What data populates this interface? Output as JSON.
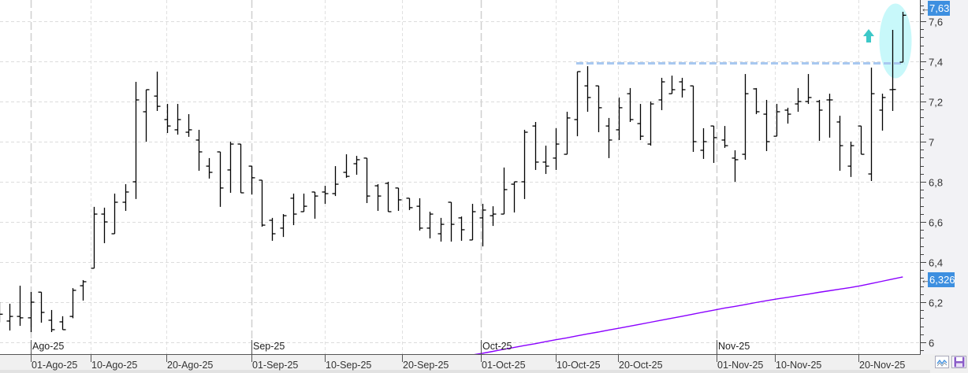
{
  "chart_data": {
    "type": "ohlc",
    "title": "",
    "xlabel": "",
    "ylabel": "",
    "ylim": [
      5.94,
      7.7
    ],
    "grid": true,
    "y_ticks": [
      "6",
      "6,2",
      "6,4",
      "6,6",
      "6,8",
      "7",
      "7,2",
      "7,4",
      "7,6"
    ],
    "y_tick_values": [
      6.0,
      6.2,
      6.4,
      6.6,
      6.8,
      7.0,
      7.2,
      7.4,
      7.6
    ],
    "x_ticks": [
      "01-Ago-25",
      "10-Ago-25",
      "20-Ago-25",
      "01-Sep-25",
      "10-Sep-25",
      "20-Sep-25",
      "01-Oct-25",
      "10-Oct-25",
      "20-Oct-25",
      "01-Nov-25",
      "10-Nov-25",
      "20-Nov-25"
    ],
    "month_labels": [
      "Ago-25",
      "Sep-25",
      "Oct-25",
      "Nov-25"
    ],
    "bars_columns": [
      "date",
      "open",
      "high",
      "low",
      "close"
    ],
    "bars": [
      [
        "2025-07-29",
        6.13,
        6.2,
        6.1,
        6.14
      ],
      [
        "2025-07-30",
        6.106,
        6.192,
        6.059,
        6.129
      ],
      [
        "2025-07-31",
        6.129,
        6.282,
        6.082,
        6.122
      ],
      [
        "2025-08-01",
        6.122,
        6.251,
        6.051,
        6.2
      ],
      [
        "2025-08-04",
        6.25,
        6.25,
        6.098,
        6.149
      ],
      [
        "2025-08-05",
        6.11,
        6.161,
        6.051,
        6.063
      ],
      [
        "2025-08-06",
        6.102,
        6.13,
        6.063,
        6.063
      ],
      [
        "2025-08-07",
        6.129,
        6.27,
        6.12,
        6.259
      ],
      [
        "2025-08-08",
        6.282,
        6.31,
        6.208,
        6.302
      ],
      [
        "2025-08-11",
        6.369,
        6.675,
        6.369,
        6.639
      ],
      [
        "2025-08-12",
        6.639,
        6.671,
        6.494,
        6.6
      ],
      [
        "2025-08-13",
        6.541,
        6.741,
        6.541,
        6.698
      ],
      [
        "2025-08-14",
        6.698,
        6.788,
        6.655,
        6.749
      ],
      [
        "2025-08-15",
        6.8,
        7.298,
        6.714,
        7.208
      ],
      [
        "2025-08-18",
        7.149,
        7.259,
        7.0,
        7.259
      ],
      [
        "2025-08-19",
        7.227,
        7.349,
        7.153,
        7.176
      ],
      [
        "2025-08-20",
        7.11,
        7.188,
        7.043,
        7.078
      ],
      [
        "2025-08-21",
        7.059,
        7.188,
        7.035,
        7.11
      ],
      [
        "2025-08-22",
        7.047,
        7.137,
        7.024,
        7.059
      ],
      [
        "2025-08-25",
        7.008,
        7.059,
        6.855,
        6.949
      ],
      [
        "2025-08-26",
        6.878,
        6.918,
        6.816,
        6.847
      ],
      [
        "2025-08-27",
        6.949,
        6.949,
        6.675,
        6.769
      ],
      [
        "2025-08-28",
        6.859,
        7.0,
        6.745,
        6.988
      ],
      [
        "2025-08-29",
        6.988,
        6.988,
        6.745,
        6.745
      ],
      [
        "2025-09-01",
        6.878,
        6.878,
        6.737,
        6.82
      ],
      [
        "2025-09-02",
        6.808,
        6.808,
        6.576,
        6.584
      ],
      [
        "2025-09-03",
        6.608,
        6.62,
        6.506,
        6.541
      ],
      [
        "2025-09-04",
        6.569,
        6.639,
        6.525,
        6.631
      ],
      [
        "2025-09-05",
        6.718,
        6.741,
        6.584,
        6.639
      ],
      [
        "2025-09-08",
        6.651,
        6.741,
        6.651,
        6.678
      ],
      [
        "2025-09-09",
        6.749,
        6.749,
        6.616,
        6.729
      ],
      [
        "2025-09-10",
        6.749,
        6.78,
        6.69,
        6.741
      ],
      [
        "2025-09-11",
        6.741,
        6.878,
        6.729,
        6.788
      ],
      [
        "2025-09-12",
        6.847,
        6.937,
        6.82,
        6.827
      ],
      [
        "2025-09-15",
        6.89,
        6.929,
        6.835,
        6.91
      ],
      [
        "2025-09-16",
        6.918,
        6.918,
        6.694,
        6.729
      ],
      [
        "2025-09-17",
        6.78,
        6.788,
        6.655,
        6.729
      ],
      [
        "2025-09-18",
        6.792,
        6.8,
        6.651,
        6.651
      ],
      [
        "2025-09-19",
        6.769,
        6.769,
        6.655,
        6.71
      ],
      [
        "2025-09-22",
        6.718,
        6.718,
        6.659,
        6.671
      ],
      [
        "2025-09-23",
        6.678,
        6.718,
        6.557,
        6.569
      ],
      [
        "2025-09-24",
        6.569,
        6.651,
        6.518,
        6.639
      ],
      [
        "2025-09-25",
        6.541,
        6.62,
        6.502,
        6.588
      ],
      [
        "2025-09-26",
        6.698,
        6.698,
        6.502,
        6.588
      ],
      [
        "2025-09-29",
        6.62,
        6.627,
        6.506,
        6.561
      ],
      [
        "2025-09-30",
        6.51,
        6.69,
        6.51,
        6.651
      ],
      [
        "2025-10-01",
        6.62,
        6.69,
        6.478,
        6.659
      ],
      [
        "2025-10-02",
        6.631,
        6.678,
        6.58,
        6.639
      ],
      [
        "2025-10-03",
        6.639,
        6.871,
        6.639,
        6.761
      ],
      [
        "2025-10-06",
        6.788,
        6.8,
        6.647,
        6.8
      ],
      [
        "2025-10-07",
        6.8,
        7.059,
        6.714,
        7.047
      ],
      [
        "2025-10-08",
        7.078,
        7.098,
        6.859,
        6.898
      ],
      [
        "2025-10-09",
        6.898,
        6.98,
        6.839,
        6.878
      ],
      [
        "2025-10-10",
        6.918,
        7.067,
        6.859,
        6.988
      ],
      [
        "2025-10-13",
        6.937,
        7.149,
        6.937,
        7.118
      ],
      [
        "2025-10-14",
        7.11,
        7.349,
        7.027,
        7.349
      ],
      [
        "2025-10-15",
        7.278,
        7.376,
        7.149,
        7.22
      ],
      [
        "2025-10-16",
        7.278,
        7.278,
        7.047,
        7.169
      ],
      [
        "2025-10-17",
        7.078,
        7.118,
        6.918,
        7.008
      ],
      [
        "2025-10-20",
        7.059,
        7.22,
        7.008,
        7.169
      ],
      [
        "2025-10-21",
        7.239,
        7.267,
        7.098,
        7.11
      ],
      [
        "2025-10-22",
        7.09,
        7.188,
        7.008,
        7.027
      ],
      [
        "2025-10-23",
        6.988,
        7.2,
        6.98,
        7.188
      ],
      [
        "2025-10-24",
        7.208,
        7.318,
        7.157,
        7.298
      ],
      [
        "2025-10-27",
        7.239,
        7.329,
        7.239,
        7.259
      ],
      [
        "2025-10-28",
        7.298,
        7.318,
        7.22,
        7.259
      ],
      [
        "2025-10-29",
        7.278,
        7.278,
        6.949,
        7.0
      ],
      [
        "2025-10-30",
        6.957,
        7.067,
        6.914,
        7.0
      ],
      [
        "2025-10-31",
        7.078,
        7.078,
        6.894,
        7.02
      ],
      [
        "2025-11-03",
        7.008,
        7.078,
        6.969,
        6.98
      ],
      [
        "2025-11-04",
        6.918,
        6.957,
        6.8,
        6.91
      ],
      [
        "2025-11-05",
        6.937,
        7.337,
        6.91,
        7.239
      ],
      [
        "2025-11-06",
        7.263,
        7.267,
        7.137,
        7.149
      ],
      [
        "2025-11-07",
        7.137,
        7.208,
        6.953,
        7.0
      ],
      [
        "2025-11-10",
        7.027,
        7.188,
        7.027,
        7.149
      ],
      [
        "2025-11-11",
        7.157,
        7.169,
        7.09,
        7.137
      ],
      [
        "2025-11-12",
        7.188,
        7.267,
        7.149,
        7.2
      ],
      [
        "2025-11-13",
        7.2,
        7.337,
        7.188,
        7.22
      ],
      [
        "2025-11-14",
        7.2,
        7.208,
        7.004,
        7.157
      ],
      [
        "2025-11-17",
        7.208,
        7.239,
        7.02,
        7.208
      ],
      [
        "2025-11-18",
        7.098,
        7.129,
        6.855,
        6.98
      ],
      [
        "2025-11-19",
        6.878,
        7.0,
        6.824,
        6.98
      ],
      [
        "2025-11-20",
        7.078,
        7.078,
        6.937,
        6.937
      ],
      [
        "2025-11-21",
        6.839,
        7.369,
        6.804,
        7.239
      ],
      [
        "2025-11-24",
        7.157,
        7.239,
        7.055,
        7.22
      ],
      [
        "2025-11-25",
        7.259,
        7.557,
        7.153,
        7.26
      ],
      [
        "2025-11-26",
        7.396,
        7.647,
        7.396,
        7.63
      ]
    ],
    "moving_average": {
      "color": "#8a00ff",
      "last_value_label": "6,326",
      "points": [
        [
          "2025-09-30",
          5.937
        ],
        [
          "2025-10-01",
          5.945
        ],
        [
          "2025-10-02",
          5.955
        ],
        [
          "2025-10-03",
          5.965
        ],
        [
          "2025-10-06",
          5.974
        ],
        [
          "2025-10-07",
          5.984
        ],
        [
          "2025-10-08",
          5.993
        ],
        [
          "2025-10-09",
          6.003
        ],
        [
          "2025-10-10",
          6.013
        ],
        [
          "2025-10-13",
          6.022
        ],
        [
          "2025-10-14",
          6.032
        ],
        [
          "2025-10-15",
          6.042
        ],
        [
          "2025-10-16",
          6.051
        ],
        [
          "2025-10-17",
          6.061
        ],
        [
          "2025-10-20",
          6.07
        ],
        [
          "2025-10-21",
          6.08
        ],
        [
          "2025-10-22",
          6.09
        ],
        [
          "2025-10-23",
          6.1
        ],
        [
          "2025-10-24",
          6.11
        ],
        [
          "2025-10-27",
          6.12
        ],
        [
          "2025-10-28",
          6.13
        ],
        [
          "2025-10-29",
          6.14
        ],
        [
          "2025-10-30",
          6.15
        ],
        [
          "2025-10-31",
          6.16
        ],
        [
          "2025-11-03",
          6.17
        ],
        [
          "2025-11-04",
          6.179
        ],
        [
          "2025-11-05",
          6.188
        ],
        [
          "2025-11-06",
          6.198
        ],
        [
          "2025-11-07",
          6.207
        ],
        [
          "2025-11-10",
          6.216
        ],
        [
          "2025-11-11",
          6.224
        ],
        [
          "2025-11-12",
          6.232
        ],
        [
          "2025-11-13",
          6.24
        ],
        [
          "2025-11-14",
          6.249
        ],
        [
          "2025-11-17",
          6.257
        ],
        [
          "2025-11-18",
          6.265
        ],
        [
          "2025-11-19",
          6.273
        ],
        [
          "2025-11-20",
          6.282
        ],
        [
          "2025-11-21",
          6.293
        ],
        [
          "2025-11-24",
          6.304
        ],
        [
          "2025-11-25",
          6.315
        ],
        [
          "2025-11-26",
          6.326
        ]
      ]
    },
    "last_price_label": "7,63",
    "resistance_line": {
      "value": 7.39,
      "from_date": "2025-10-14",
      "to_date": "2025-11-26",
      "color": "#a8c8f0"
    },
    "breakout_marker": {
      "icon": "arrow-up-icon",
      "color": "#3cc8c8",
      "highlight_color": "#c8f8fa"
    }
  },
  "toolbar": {
    "indicator_button_icon": "wave-chart-icon",
    "save_button_icon": "floppy-disk-icon"
  }
}
